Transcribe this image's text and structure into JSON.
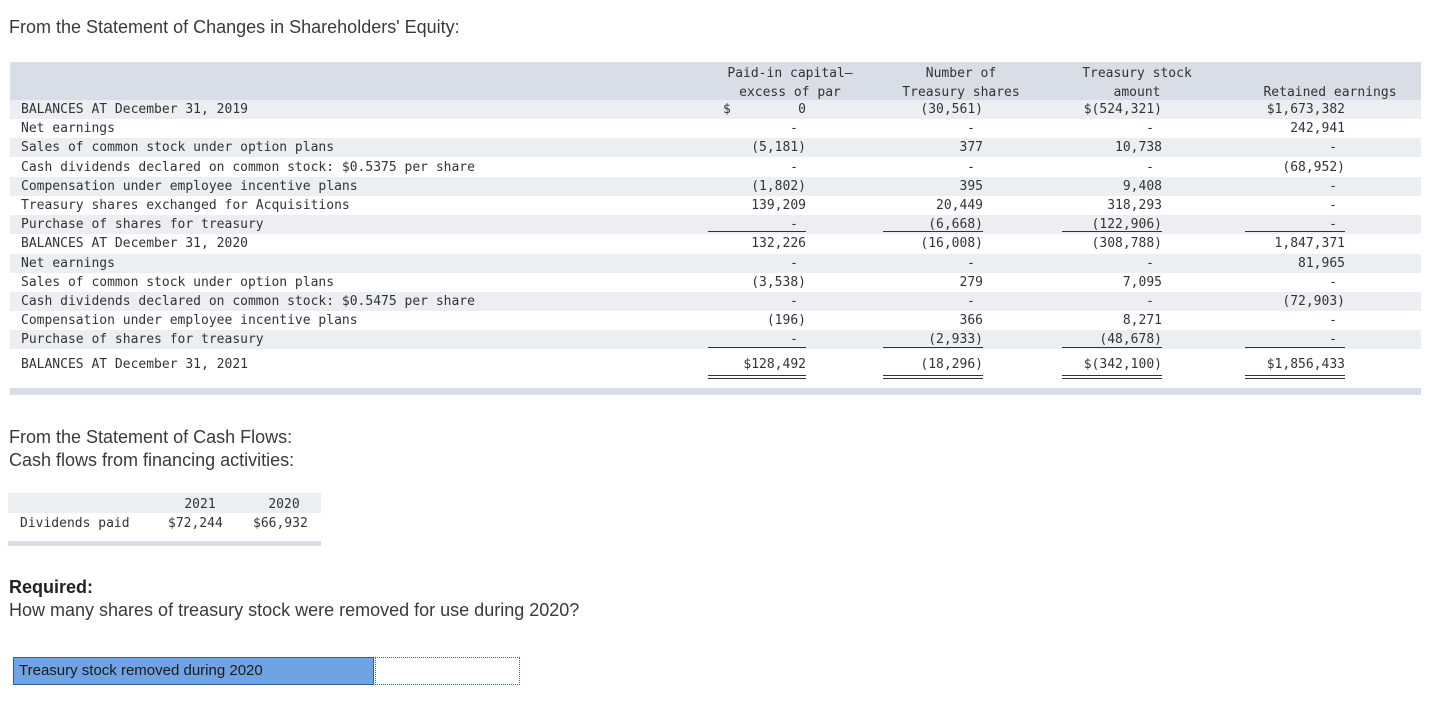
{
  "equity_heading": "From the Statement of Changes in Shareholders' Equity:",
  "columns": {
    "paid_in": [
      "Paid-in capital—",
      "excess of par"
    ],
    "num_treasury": [
      "Number of",
      "Treasury shares"
    ],
    "treasury_amt": [
      "Treasury stock",
      "amount"
    ],
    "retained": "Retained earnings"
  },
  "rows": [
    {
      "label": "BALANCES AT December 31, 2019",
      "paid_in": "0",
      "paid_in_prefix": "$",
      "num": "(30,561)",
      "amt": "$(524,321)",
      "re": "$1,673,382"
    },
    {
      "label": "Net earnings",
      "paid_in": "-",
      "num": "-",
      "amt": "-",
      "re": "242,941"
    },
    {
      "label": "Sales of common stock under option plans",
      "paid_in": "(5,181)",
      "num": "377",
      "amt": "10,738",
      "re": "-"
    },
    {
      "label": "Cash dividends declared on common stock: $0.5375 per share",
      "paid_in": "-",
      "num": "-",
      "amt": "-",
      "re": "(68,952)"
    },
    {
      "label": "Compensation under employee incentive plans",
      "paid_in": "(1,802)",
      "num": "395",
      "amt": "9,408",
      "re": "-"
    },
    {
      "label": "Treasury shares exchanged for Acquisitions",
      "paid_in": "139,209",
      "num": "20,449",
      "amt": "318,293",
      "re": "-"
    },
    {
      "label": "Purchase of shares for treasury",
      "paid_in": "-",
      "num": "(6,668)",
      "amt": "(122,906)",
      "re": "-"
    },
    {
      "label": "BALANCES AT December 31, 2020",
      "paid_in": "132,226",
      "num": "(16,008)",
      "amt": "(308,788)",
      "re": "1,847,371"
    },
    {
      "label": "Net earnings",
      "paid_in": "-",
      "num": "-",
      "amt": "-",
      "re": "81,965"
    },
    {
      "label": "Sales of common stock under option plans",
      "paid_in": "(3,538)",
      "num": "279",
      "amt": "7,095",
      "re": "-"
    },
    {
      "label": "Cash dividends declared on common stock: $0.5475 per share",
      "paid_in": "-",
      "num": "-",
      "amt": "-",
      "re": "(72,903)"
    },
    {
      "label": "Compensation under employee incentive plans",
      "paid_in": "(196)",
      "num": "366",
      "amt": "8,271",
      "re": "-"
    },
    {
      "label": "Purchase of shares for treasury",
      "paid_in": "-",
      "num": "(2,933)",
      "amt": "(48,678)",
      "re": "-"
    },
    {
      "label": "BALANCES AT December 31, 2021",
      "paid_in": "$128,492",
      "num": "(18,296)",
      "amt": "$(342,100)",
      "re": "$1,856,433"
    }
  ],
  "cashflow_heading": [
    "From the Statement of Cash Flows:",
    "Cash flows from financing activities:"
  ],
  "cashflow": {
    "years": [
      "2021",
      "2020"
    ],
    "row_label": "Dividends paid",
    "values": [
      "$72,244",
      "$66,932"
    ]
  },
  "required_label": "Required:",
  "question": "How many shares of treasury stock were removed for use during 2020?",
  "answer_label": "Treasury stock removed during 2020",
  "answer_value": ""
}
